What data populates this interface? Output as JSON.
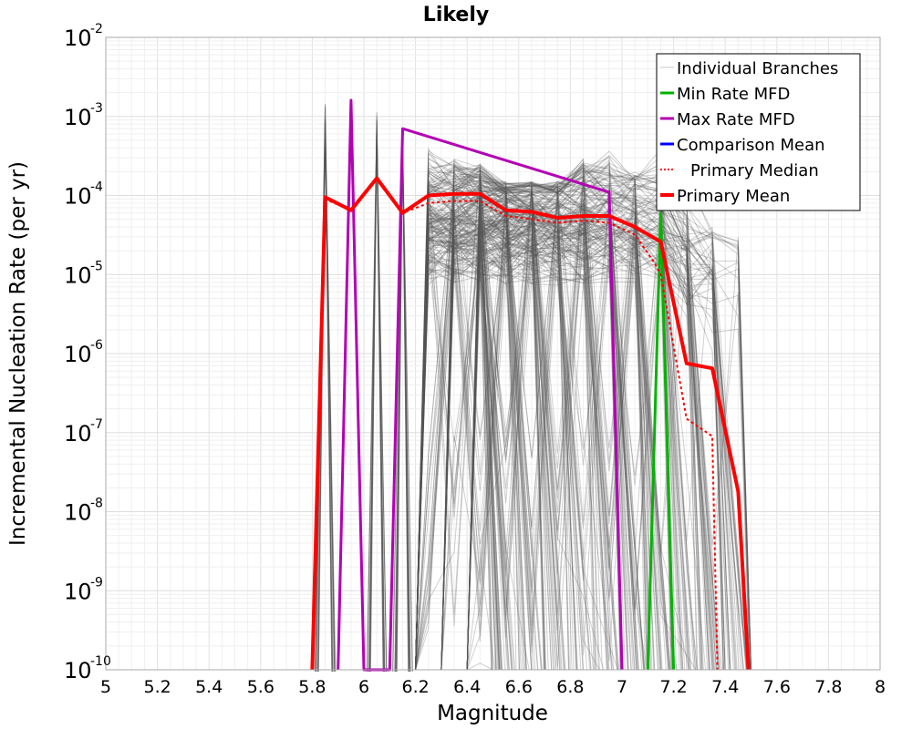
{
  "chart_data": {
    "type": "line",
    "title": "Likely",
    "xlabel": "Magnitude",
    "ylabel": "Incremental Nucleation Rate (per yr)",
    "xlim": [
      5,
      8
    ],
    "ylim": [
      1e-10,
      0.01
    ],
    "yscale": "log",
    "grid": true,
    "legend_position": "top-right",
    "x_ticks": [
      "5",
      "5.2",
      "5.4",
      "5.6",
      "5.8",
      "6",
      "6.2",
      "6.4",
      "6.6",
      "6.8",
      "7",
      "7.2",
      "7.4",
      "7.6",
      "7.8",
      "8"
    ],
    "y_ticks": [
      {
        "base": "10",
        "exp": "-10",
        "value": 1e-10
      },
      {
        "base": "10",
        "exp": "-9",
        "value": 1e-09
      },
      {
        "base": "10",
        "exp": "-8",
        "value": 1e-08
      },
      {
        "base": "10",
        "exp": "-7",
        "value": 1e-07
      },
      {
        "base": "10",
        "exp": "-6",
        "value": 1e-06
      },
      {
        "base": "10",
        "exp": "-5",
        "value": 1e-05
      },
      {
        "base": "10",
        "exp": "-4",
        "value": 0.0001
      },
      {
        "base": "10",
        "exp": "-3",
        "value": 0.001
      },
      {
        "base": "10",
        "exp": "-2",
        "value": 0.01
      }
    ],
    "legend": [
      {
        "label": "Individual Branches",
        "color": "#c8c8c8",
        "style": "solid",
        "width": 1
      },
      {
        "label": "Min Rate MFD",
        "color": "#00b400",
        "style": "solid",
        "width": 3
      },
      {
        "label": "Max Rate MFD",
        "color": "#b400b4",
        "style": "solid",
        "width": 3
      },
      {
        "label": "Comparison Mean",
        "color": "#0000ff",
        "style": "solid",
        "width": 3
      },
      {
        "label": "Primary Median",
        "color": "#ff0000",
        "style": "dotted",
        "width": 2
      },
      {
        "label": "Primary Mean",
        "color": "#ff0000",
        "style": "solid",
        "width": 4
      }
    ],
    "series": [
      {
        "name": "Min Rate MFD",
        "color": "#00b400",
        "width": 3,
        "points": [
          [
            7.1,
            1e-10
          ],
          [
            7.15,
            6e-05
          ],
          [
            7.2,
            1e-10
          ]
        ]
      },
      {
        "name": "Max Rate MFD",
        "color": "#b400b4",
        "width": 3,
        "points": [
          [
            5.9,
            1e-10
          ],
          [
            5.95,
            0.0016
          ],
          [
            6.0,
            1e-10
          ],
          [
            6.1,
            1e-10
          ],
          [
            6.15,
            0.0007
          ],
          [
            6.95,
            0.00011
          ],
          [
            7.0,
            1e-10
          ]
        ]
      },
      {
        "name": "Primary Median",
        "color": "#ff0000",
        "width": 2,
        "dash": "3,3",
        "points": [
          [
            5.8,
            1e-10
          ],
          [
            5.85,
            9e-05
          ],
          [
            5.95,
            6.5e-05
          ],
          [
            6.05,
            0.00016
          ],
          [
            6.15,
            6e-05
          ],
          [
            6.25,
            8e-05
          ],
          [
            6.35,
            8.5e-05
          ],
          [
            6.45,
            8.5e-05
          ],
          [
            6.55,
            5.5e-05
          ],
          [
            6.65,
            5e-05
          ],
          [
            6.75,
            4.5e-05
          ],
          [
            6.85,
            4.8e-05
          ],
          [
            6.95,
            4.5e-05
          ],
          [
            7.05,
            3.2e-05
          ],
          [
            7.12,
            1.5e-05
          ],
          [
            7.15,
            1e-05
          ],
          [
            7.25,
            1.5e-07
          ],
          [
            7.35,
            9e-08
          ],
          [
            7.37,
            1e-10
          ]
        ]
      },
      {
        "name": "Primary Mean",
        "color": "#ff0000",
        "width": 4,
        "points": [
          [
            5.8,
            1e-10
          ],
          [
            5.85,
            9.5e-05
          ],
          [
            5.95,
            6.5e-05
          ],
          [
            6.05,
            0.000165
          ],
          [
            6.15,
            6e-05
          ],
          [
            6.25,
            0.0001
          ],
          [
            6.35,
            0.000105
          ],
          [
            6.45,
            0.000105
          ],
          [
            6.55,
            6.5e-05
          ],
          [
            6.65,
            6.2e-05
          ],
          [
            6.75,
            5.2e-05
          ],
          [
            6.85,
            5.5e-05
          ],
          [
            6.95,
            5.5e-05
          ],
          [
            7.05,
            4e-05
          ],
          [
            7.15,
            2.6e-05
          ],
          [
            7.25,
            7.5e-07
          ],
          [
            7.35,
            6.5e-07
          ],
          [
            7.45,
            1.8e-08
          ],
          [
            7.49,
            1e-10
          ]
        ]
      }
    ],
    "branches": {
      "name": "Individual Branches",
      "color": "#555555",
      "count": 300,
      "description": "Dense bundle of logic-tree branch MFDs",
      "spikes": [
        {
          "x": 5.85,
          "peak": 0.0016
        },
        {
          "x": 6.05,
          "peak": 0.0013
        },
        {
          "x": 6.15,
          "peak": 0.0008
        }
      ],
      "x": [
        6.25,
        6.35,
        6.45,
        6.55,
        6.65,
        6.75,
        6.85,
        6.95,
        7.05,
        7.15,
        7.25,
        7.35,
        7.45
      ],
      "upper_envelope": [
        0.00045,
        0.0003,
        0.00025,
        0.00015,
        0.00015,
        0.00015,
        0.0003,
        0.0006,
        0.0002,
        0.0004,
        0.0002,
        4e-05,
        3e-05
      ]
    }
  }
}
